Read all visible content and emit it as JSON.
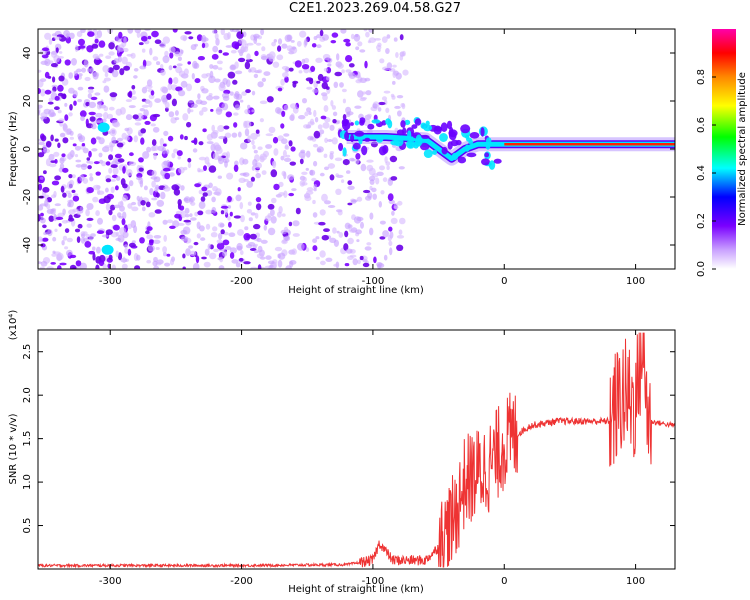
{
  "figure_title": "C2E1.2023.269.04.58.G27",
  "colors": {
    "snr_line": "#ee3333",
    "spectrogram_low": "#7a00ff",
    "spectrogram_mid": "#00ffff",
    "spectrogram_high": "#ff2200"
  },
  "chart_data": [
    {
      "type": "heatmap",
      "title": "",
      "xlabel": "Height of straight line (km)",
      "ylabel": "Frequency (Hz)",
      "xlim": [
        -355,
        130
      ],
      "ylim": [
        -50,
        50
      ],
      "x_ticks": [
        -300,
        -200,
        -100,
        0,
        100
      ],
      "y_ticks": [
        -40,
        -20,
        0,
        20,
        40
      ],
      "colorbar": {
        "label": "Normalized spectral amplitude",
        "range": [
          0,
          1
        ],
        "ticks": [
          0.0,
          0.2,
          0.4,
          0.6,
          0.8
        ]
      },
      "features": [
        {
          "name": "noise",
          "x_range": [
            -355,
            -75
          ],
          "y_range": [
            -50,
            50
          ],
          "amplitude": 0.2
        },
        {
          "name": "signal_track",
          "x": [
            -120,
            -90,
            -60,
            -40,
            -30,
            -20,
            0,
            50,
            100,
            130
          ],
          "y": [
            5,
            5,
            4,
            -4,
            0,
            2,
            2,
            2,
            2,
            2
          ],
          "amplitude": [
            0.35,
            0.45,
            0.5,
            0.45,
            0.6,
            0.7,
            0.9,
            0.9,
            0.85,
            0.9
          ]
        }
      ],
      "grid": false
    },
    {
      "type": "line",
      "title": "",
      "xlabel": "Height of straight line (km)",
      "ylabel": "SNR (10 * v/v)",
      "y_multiplier": "(x10⁴)",
      "xlim": [
        -355,
        130
      ],
      "ylim": [
        0,
        2.75
      ],
      "x_ticks": [
        -300,
        -200,
        -100,
        0,
        100
      ],
      "y_ticks": [
        0.5,
        1.0,
        1.5,
        2.0,
        2.5
      ],
      "x": [
        -355,
        -300,
        -200,
        -120,
        -100,
        -95,
        -85,
        -60,
        -50,
        -40,
        -30,
        -20,
        -10,
        0,
        20,
        40,
        60,
        80,
        90,
        100,
        105,
        110,
        130
      ],
      "y": [
        0.04,
        0.04,
        0.04,
        0.05,
        0.1,
        0.3,
        0.1,
        0.1,
        0.25,
        0.5,
        1.0,
        1.1,
        1.2,
        1.45,
        1.65,
        1.7,
        1.7,
        1.7,
        2.0,
        1.9,
        2.6,
        1.7,
        1.65
      ],
      "grid": false
    }
  ]
}
